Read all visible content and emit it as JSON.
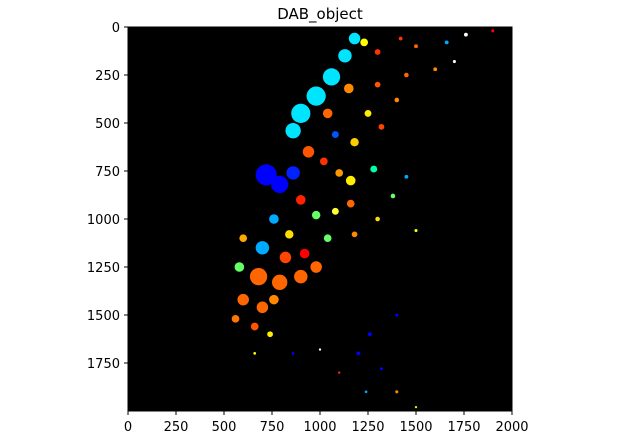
{
  "chart_data": {
    "type": "heatmap",
    "title": "DAB_object",
    "xlabel": "",
    "ylabel": "",
    "xlim": [
      0,
      2000
    ],
    "ylim": [
      2000,
      0
    ],
    "x_ticks": [
      0,
      250,
      500,
      750,
      1000,
      1250,
      1500,
      1750,
      2000
    ],
    "y_ticks": [
      0,
      250,
      500,
      750,
      1000,
      1250,
      1500,
      1750
    ],
    "x_tick_labels": [
      "0",
      "250",
      "500",
      "750",
      "1000",
      "1250",
      "1500",
      "1750",
      "2000"
    ],
    "y_tick_labels": [
      "0",
      "250",
      "500",
      "750",
      "1000",
      "1250",
      "1500",
      "1750"
    ],
    "grid": false,
    "colormap": "jet",
    "background_color": "#000000",
    "description_of_content": "",
    "objects": [
      {
        "x": 1180,
        "y": 60,
        "r": 30,
        "color": "#00e5ff"
      },
      {
        "x": 1130,
        "y": 150,
        "r": 35,
        "color": "#00e5ff"
      },
      {
        "x": 1060,
        "y": 260,
        "r": 45,
        "color": "#00e5ff"
      },
      {
        "x": 980,
        "y": 360,
        "r": 50,
        "color": "#00e5ff"
      },
      {
        "x": 900,
        "y": 450,
        "r": 50,
        "color": "#00e5ff"
      },
      {
        "x": 860,
        "y": 540,
        "r": 40,
        "color": "#00e5ff"
      },
      {
        "x": 1230,
        "y": 80,
        "r": 20,
        "color": "#ffff00"
      },
      {
        "x": 1300,
        "y": 130,
        "r": 15,
        "color": "#ff3300"
      },
      {
        "x": 1150,
        "y": 320,
        "r": 25,
        "color": "#ff8800"
      },
      {
        "x": 1040,
        "y": 450,
        "r": 25,
        "color": "#ff6600"
      },
      {
        "x": 1250,
        "y": 450,
        "r": 18,
        "color": "#ffee00"
      },
      {
        "x": 1320,
        "y": 520,
        "r": 15,
        "color": "#ff4400"
      },
      {
        "x": 1400,
        "y": 380,
        "r": 12,
        "color": "#ff8800"
      },
      {
        "x": 1080,
        "y": 560,
        "r": 18,
        "color": "#0055ff"
      },
      {
        "x": 1180,
        "y": 600,
        "r": 22,
        "color": "#ffcc00"
      },
      {
        "x": 720,
        "y": 770,
        "r": 55,
        "color": "#0000ff"
      },
      {
        "x": 790,
        "y": 820,
        "r": 45,
        "color": "#0000ff"
      },
      {
        "x": 860,
        "y": 760,
        "r": 35,
        "color": "#0022ff"
      },
      {
        "x": 940,
        "y": 650,
        "r": 30,
        "color": "#ff5500"
      },
      {
        "x": 1020,
        "y": 700,
        "r": 20,
        "color": "#ff3300"
      },
      {
        "x": 1100,
        "y": 760,
        "r": 20,
        "color": "#ff9900"
      },
      {
        "x": 1160,
        "y": 800,
        "r": 25,
        "color": "#ffee00"
      },
      {
        "x": 1280,
        "y": 740,
        "r": 18,
        "color": "#00ffaa"
      },
      {
        "x": 900,
        "y": 900,
        "r": 25,
        "color": "#ff2200"
      },
      {
        "x": 980,
        "y": 980,
        "r": 22,
        "color": "#66ff66"
      },
      {
        "x": 1080,
        "y": 960,
        "r": 18,
        "color": "#ffff33"
      },
      {
        "x": 1160,
        "y": 920,
        "r": 20,
        "color": "#ff6600"
      },
      {
        "x": 760,
        "y": 1000,
        "r": 25,
        "color": "#00aaff"
      },
      {
        "x": 840,
        "y": 1080,
        "r": 22,
        "color": "#ffdd00"
      },
      {
        "x": 1040,
        "y": 1100,
        "r": 20,
        "color": "#66ff66"
      },
      {
        "x": 1180,
        "y": 1080,
        "r": 15,
        "color": "#ff8800"
      },
      {
        "x": 600,
        "y": 1100,
        "r": 20,
        "color": "#ffaa00"
      },
      {
        "x": 700,
        "y": 1150,
        "r": 35,
        "color": "#00aaff"
      },
      {
        "x": 820,
        "y": 1200,
        "r": 30,
        "color": "#ff4400"
      },
      {
        "x": 920,
        "y": 1180,
        "r": 25,
        "color": "#ff0000"
      },
      {
        "x": 580,
        "y": 1250,
        "r": 25,
        "color": "#66ff66"
      },
      {
        "x": 680,
        "y": 1300,
        "r": 45,
        "color": "#ff6600"
      },
      {
        "x": 790,
        "y": 1330,
        "r": 40,
        "color": "#ff6600"
      },
      {
        "x": 900,
        "y": 1300,
        "r": 35,
        "color": "#ff6600"
      },
      {
        "x": 980,
        "y": 1250,
        "r": 30,
        "color": "#ff6600"
      },
      {
        "x": 600,
        "y": 1420,
        "r": 30,
        "color": "#ff6600"
      },
      {
        "x": 700,
        "y": 1460,
        "r": 30,
        "color": "#ff6600"
      },
      {
        "x": 760,
        "y": 1420,
        "r": 25,
        "color": "#ff8800"
      },
      {
        "x": 660,
        "y": 1560,
        "r": 20,
        "color": "#ff5500"
      },
      {
        "x": 740,
        "y": 1600,
        "r": 15,
        "color": "#ffee00"
      },
      {
        "x": 560,
        "y": 1520,
        "r": 20,
        "color": "#ff7700"
      },
      {
        "x": 1300,
        "y": 1000,
        "r": 12,
        "color": "#ffdd00"
      },
      {
        "x": 1380,
        "y": 880,
        "r": 12,
        "color": "#66ff66"
      },
      {
        "x": 1450,
        "y": 780,
        "r": 10,
        "color": "#00aaff"
      },
      {
        "x": 1500,
        "y": 1060,
        "r": 8,
        "color": "#ffff00"
      },
      {
        "x": 1400,
        "y": 1500,
        "r": 8,
        "color": "#0000ff"
      },
      {
        "x": 1260,
        "y": 1600,
        "r": 10,
        "color": "#0000ff"
      },
      {
        "x": 1200,
        "y": 1700,
        "r": 10,
        "color": "#0000ff"
      },
      {
        "x": 1320,
        "y": 1780,
        "r": 8,
        "color": "#0000ff"
      },
      {
        "x": 1400,
        "y": 1900,
        "r": 8,
        "color": "#ff8800"
      },
      {
        "x": 1240,
        "y": 1900,
        "r": 7,
        "color": "#00aaff"
      },
      {
        "x": 860,
        "y": 1700,
        "r": 7,
        "color": "#0000ff"
      },
      {
        "x": 660,
        "y": 1700,
        "r": 7,
        "color": "#ffff00"
      },
      {
        "x": 1000,
        "y": 1680,
        "r": 6,
        "color": "#ffffff"
      },
      {
        "x": 1100,
        "y": 1800,
        "r": 6,
        "color": "#ff3300"
      },
      {
        "x": 1500,
        "y": 1980,
        "r": 6,
        "color": "#ffee00"
      },
      {
        "x": 1420,
        "y": 60,
        "r": 10,
        "color": "#ff3300"
      },
      {
        "x": 1500,
        "y": 100,
        "r": 10,
        "color": "#ff6600"
      },
      {
        "x": 1660,
        "y": 80,
        "r": 10,
        "color": "#00aaff"
      },
      {
        "x": 1760,
        "y": 40,
        "r": 10,
        "color": "#ffffff"
      },
      {
        "x": 1900,
        "y": 20,
        "r": 8,
        "color": "#ff0000"
      },
      {
        "x": 1600,
        "y": 220,
        "r": 10,
        "color": "#ff8800"
      },
      {
        "x": 1700,
        "y": 180,
        "r": 8,
        "color": "#ffffff"
      },
      {
        "x": 1300,
        "y": 300,
        "r": 15,
        "color": "#ff5500"
      },
      {
        "x": 1450,
        "y": 250,
        "r": 12,
        "color": "#ff6600"
      }
    ]
  }
}
